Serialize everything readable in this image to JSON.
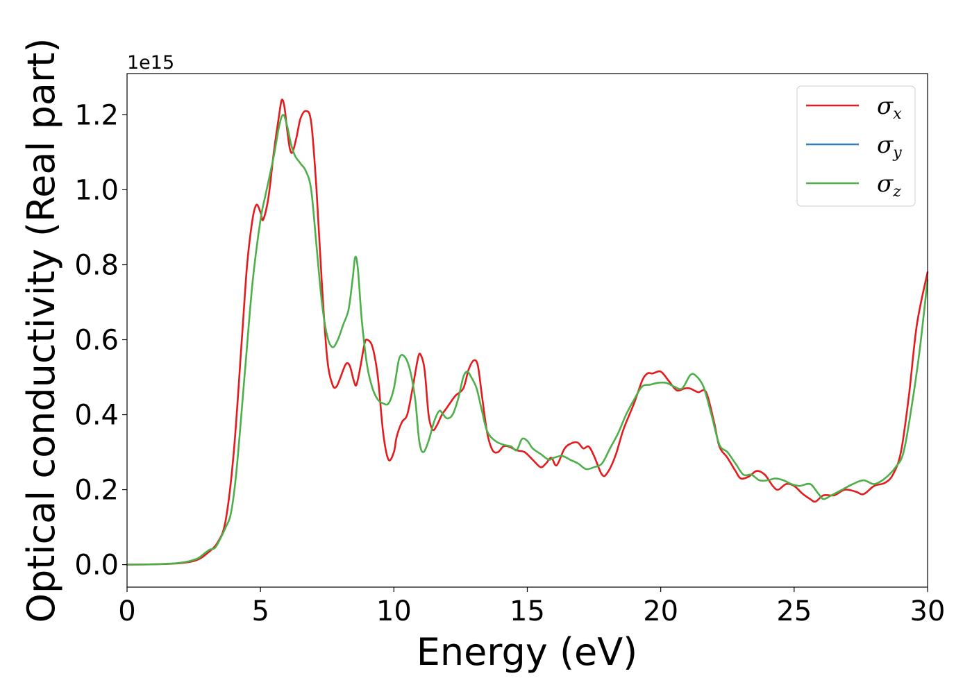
{
  "chart_data": {
    "type": "line",
    "title": "",
    "xlabel": "Energy (eV)",
    "ylabel": "Optical conductivity (Real part)",
    "y_offset_label": "1e15",
    "xlim": [
      0,
      30
    ],
    "ylim": [
      -0.06,
      1.31
    ],
    "x_ticks": [
      0,
      5,
      10,
      15,
      20,
      25,
      30
    ],
    "x_tick_labels": [
      "0",
      "5",
      "10",
      "15",
      "20",
      "25",
      "30"
    ],
    "y_ticks": [
      0.0,
      0.2,
      0.4,
      0.6,
      0.8,
      1.0,
      1.2
    ],
    "y_tick_labels": [
      "0.0",
      "0.2",
      "0.4",
      "0.6",
      "0.8",
      "1.0",
      "1.2"
    ],
    "grid": false,
    "legend_position": "top-right",
    "series": [
      {
        "name": "σx",
        "legend_symbol": "σ",
        "legend_sub": "x",
        "color": "#e41a1c",
        "points": [
          [
            0,
            0
          ],
          [
            1,
            0.001
          ],
          [
            2,
            0.004
          ],
          [
            2.6,
            0.012
          ],
          [
            3,
            0.03
          ],
          [
            3.4,
            0.06
          ],
          [
            3.7,
            0.12
          ],
          [
            4,
            0.3
          ],
          [
            4.3,
            0.6
          ],
          [
            4.5,
            0.8
          ],
          [
            4.7,
            0.92
          ],
          [
            4.85,
            0.96
          ],
          [
            5,
            0.94
          ],
          [
            5.1,
            0.92
          ],
          [
            5.3,
            0.98
          ],
          [
            5.5,
            1.1
          ],
          [
            5.7,
            1.2
          ],
          [
            5.8,
            1.24
          ],
          [
            5.9,
            1.22
          ],
          [
            6,
            1.16
          ],
          [
            6.1,
            1.11
          ],
          [
            6.2,
            1.1
          ],
          [
            6.35,
            1.14
          ],
          [
            6.5,
            1.19
          ],
          [
            6.7,
            1.21
          ],
          [
            6.9,
            1.18
          ],
          [
            7.1,
            1.0
          ],
          [
            7.3,
            0.75
          ],
          [
            7.5,
            0.55
          ],
          [
            7.7,
            0.48
          ],
          [
            7.85,
            0.475
          ],
          [
            8,
            0.5
          ],
          [
            8.2,
            0.535
          ],
          [
            8.35,
            0.53
          ],
          [
            8.5,
            0.49
          ],
          [
            8.6,
            0.48
          ],
          [
            8.75,
            0.53
          ],
          [
            8.9,
            0.59
          ],
          [
            9,
            0.6
          ],
          [
            9.2,
            0.58
          ],
          [
            9.4,
            0.5
          ],
          [
            9.6,
            0.35
          ],
          [
            9.8,
            0.28
          ],
          [
            10,
            0.3
          ],
          [
            10.1,
            0.34
          ],
          [
            10.3,
            0.38
          ],
          [
            10.5,
            0.4
          ],
          [
            10.7,
            0.47
          ],
          [
            10.9,
            0.55
          ],
          [
            11,
            0.56
          ],
          [
            11.15,
            0.52
          ],
          [
            11.3,
            0.4
          ],
          [
            11.45,
            0.36
          ],
          [
            11.6,
            0.37
          ],
          [
            11.8,
            0.4
          ],
          [
            12,
            0.42
          ],
          [
            12.3,
            0.45
          ],
          [
            12.6,
            0.47
          ],
          [
            12.8,
            0.52
          ],
          [
            13,
            0.545
          ],
          [
            13.15,
            0.53
          ],
          [
            13.3,
            0.45
          ],
          [
            13.5,
            0.35
          ],
          [
            13.7,
            0.305
          ],
          [
            13.9,
            0.3
          ],
          [
            14.1,
            0.315
          ],
          [
            14.3,
            0.315
          ],
          [
            14.6,
            0.305
          ],
          [
            14.9,
            0.3
          ],
          [
            15.2,
            0.28
          ],
          [
            15.5,
            0.26
          ],
          [
            15.7,
            0.27
          ],
          [
            15.9,
            0.285
          ],
          [
            16.1,
            0.265
          ],
          [
            16.4,
            0.31
          ],
          [
            16.7,
            0.325
          ],
          [
            16.9,
            0.325
          ],
          [
            17.1,
            0.31
          ],
          [
            17.3,
            0.315
          ],
          [
            17.5,
            0.29
          ],
          [
            17.8,
            0.24
          ],
          [
            18,
            0.245
          ],
          [
            18.3,
            0.29
          ],
          [
            18.6,
            0.36
          ],
          [
            19,
            0.43
          ],
          [
            19.3,
            0.49
          ],
          [
            19.5,
            0.51
          ],
          [
            19.7,
            0.51
          ],
          [
            20,
            0.515
          ],
          [
            20.3,
            0.49
          ],
          [
            20.6,
            0.465
          ],
          [
            20.9,
            0.47
          ],
          [
            21.1,
            0.47
          ],
          [
            21.4,
            0.46
          ],
          [
            21.7,
            0.46
          ],
          [
            22,
            0.38
          ],
          [
            22.2,
            0.315
          ],
          [
            22.5,
            0.285
          ],
          [
            22.8,
            0.25
          ],
          [
            23,
            0.23
          ],
          [
            23.3,
            0.235
          ],
          [
            23.6,
            0.25
          ],
          [
            23.9,
            0.24
          ],
          [
            24.2,
            0.21
          ],
          [
            24.4,
            0.2
          ],
          [
            24.7,
            0.215
          ],
          [
            25,
            0.21
          ],
          [
            25.3,
            0.19
          ],
          [
            25.6,
            0.175
          ],
          [
            25.8,
            0.168
          ],
          [
            26.1,
            0.185
          ],
          [
            26.5,
            0.185
          ],
          [
            26.9,
            0.2
          ],
          [
            27.3,
            0.195
          ],
          [
            27.6,
            0.188
          ],
          [
            28,
            0.21
          ],
          [
            28.4,
            0.218
          ],
          [
            28.7,
            0.24
          ],
          [
            29,
            0.3
          ],
          [
            29.3,
            0.45
          ],
          [
            29.6,
            0.64
          ],
          [
            30,
            0.78
          ]
        ]
      },
      {
        "name": "σy",
        "legend_symbol": "σ",
        "legend_sub": "y",
        "color": "#377eb8",
        "points": []
      },
      {
        "name": "σz",
        "legend_symbol": "σ",
        "legend_sub": "z",
        "color": "#4daf4a",
        "points": [
          [
            0,
            0
          ],
          [
            1,
            0.001
          ],
          [
            2,
            0.005
          ],
          [
            2.6,
            0.015
          ],
          [
            2.9,
            0.03
          ],
          [
            3.1,
            0.04
          ],
          [
            3.3,
            0.045
          ],
          [
            3.5,
            0.07
          ],
          [
            3.7,
            0.1
          ],
          [
            3.9,
            0.14
          ],
          [
            4.1,
            0.25
          ],
          [
            4.4,
            0.5
          ],
          [
            4.7,
            0.75
          ],
          [
            5,
            0.92
          ],
          [
            5.2,
            0.99
          ],
          [
            5.5,
            1.09
          ],
          [
            5.7,
            1.17
          ],
          [
            5.85,
            1.2
          ],
          [
            6,
            1.17
          ],
          [
            6.15,
            1.12
          ],
          [
            6.3,
            1.09
          ],
          [
            6.5,
            1.07
          ],
          [
            6.7,
            1.05
          ],
          [
            6.9,
            1.0
          ],
          [
            7.1,
            0.85
          ],
          [
            7.3,
            0.7
          ],
          [
            7.5,
            0.61
          ],
          [
            7.7,
            0.58
          ],
          [
            7.9,
            0.6
          ],
          [
            8.1,
            0.64
          ],
          [
            8.3,
            0.68
          ],
          [
            8.45,
            0.76
          ],
          [
            8.55,
            0.82
          ],
          [
            8.65,
            0.79
          ],
          [
            8.8,
            0.65
          ],
          [
            9,
            0.53
          ],
          [
            9.2,
            0.47
          ],
          [
            9.4,
            0.44
          ],
          [
            9.6,
            0.43
          ],
          [
            9.8,
            0.43
          ],
          [
            10,
            0.47
          ],
          [
            10.2,
            0.55
          ],
          [
            10.4,
            0.555
          ],
          [
            10.6,
            0.52
          ],
          [
            10.8,
            0.44
          ],
          [
            10.95,
            0.33
          ],
          [
            11.1,
            0.3
          ],
          [
            11.3,
            0.33
          ],
          [
            11.5,
            0.38
          ],
          [
            11.7,
            0.41
          ],
          [
            11.85,
            0.4
          ],
          [
            12,
            0.39
          ],
          [
            12.2,
            0.4
          ],
          [
            12.4,
            0.44
          ],
          [
            12.6,
            0.5
          ],
          [
            12.75,
            0.515
          ],
          [
            12.9,
            0.5
          ],
          [
            13.1,
            0.47
          ],
          [
            13.3,
            0.41
          ],
          [
            13.5,
            0.355
          ],
          [
            13.8,
            0.33
          ],
          [
            14.1,
            0.32
          ],
          [
            14.4,
            0.315
          ],
          [
            14.6,
            0.305
          ],
          [
            14.8,
            0.335
          ],
          [
            15,
            0.33
          ],
          [
            15.2,
            0.31
          ],
          [
            15.5,
            0.295
          ],
          [
            15.8,
            0.28
          ],
          [
            16,
            0.285
          ],
          [
            16.3,
            0.29
          ],
          [
            16.6,
            0.28
          ],
          [
            16.9,
            0.27
          ],
          [
            17.2,
            0.255
          ],
          [
            17.5,
            0.26
          ],
          [
            17.8,
            0.27
          ],
          [
            18.1,
            0.31
          ],
          [
            18.4,
            0.35
          ],
          [
            18.7,
            0.4
          ],
          [
            19,
            0.44
          ],
          [
            19.3,
            0.475
          ],
          [
            19.6,
            0.48
          ],
          [
            19.9,
            0.485
          ],
          [
            20.2,
            0.485
          ],
          [
            20.5,
            0.475
          ],
          [
            20.8,
            0.47
          ],
          [
            21.1,
            0.505
          ],
          [
            21.3,
            0.505
          ],
          [
            21.6,
            0.475
          ],
          [
            21.9,
            0.4
          ],
          [
            22.2,
            0.32
          ],
          [
            22.5,
            0.3
          ],
          [
            22.8,
            0.27
          ],
          [
            23.1,
            0.24
          ],
          [
            23.4,
            0.24
          ],
          [
            23.7,
            0.225
          ],
          [
            24,
            0.225
          ],
          [
            24.3,
            0.23
          ],
          [
            24.6,
            0.225
          ],
          [
            24.9,
            0.215
          ],
          [
            25.2,
            0.21
          ],
          [
            25.6,
            0.215
          ],
          [
            25.9,
            0.19
          ],
          [
            26.1,
            0.175
          ],
          [
            26.4,
            0.185
          ],
          [
            26.8,
            0.2
          ],
          [
            27.2,
            0.215
          ],
          [
            27.6,
            0.225
          ],
          [
            28,
            0.215
          ],
          [
            28.4,
            0.23
          ],
          [
            28.8,
            0.26
          ],
          [
            29.1,
            0.3
          ],
          [
            29.4,
            0.42
          ],
          [
            29.7,
            0.57
          ],
          [
            30,
            0.76
          ]
        ]
      }
    ]
  }
}
